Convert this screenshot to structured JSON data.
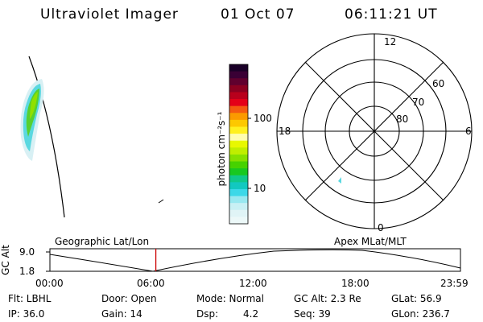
{
  "header": {
    "title": "Ultraviolet Imager",
    "date": "01 Oct 07",
    "time": "06:11:21 UT"
  },
  "colorbar": {
    "unit_label": "photon cm⁻²s⁻¹",
    "ticks": [
      "100",
      "10"
    ],
    "colors": [
      "#1a0028",
      "#3a0035",
      "#60002e",
      "#8c0020",
      "#b8001c",
      "#e40018",
      "#f45a10",
      "#fb9a00",
      "#fdc800",
      "#fff020",
      "#fffdb0",
      "#e8f800",
      "#c0ee00",
      "#86e000",
      "#46d200",
      "#18c820",
      "#10c88a",
      "#12c8c0",
      "#3cd8e8",
      "#98e8f0",
      "#c8f0f4",
      "#e0f4f6",
      "#ecf8f8"
    ]
  },
  "polar": {
    "mlt_labels": {
      "top": "12",
      "left": "18",
      "right": "6",
      "bottom": "0"
    },
    "lat_labels": [
      "60",
      "70",
      "80"
    ]
  },
  "timeline": {
    "ylabel": "GC Alt",
    "y_ticks": [
      "9.0",
      "1.8"
    ],
    "label_left": "Geographic Lat/Lon",
    "label_right": "Apex MLat/MLT",
    "x_ticks": [
      "00:00",
      "06:00",
      "12:00",
      "18:00",
      "23:59"
    ],
    "current_time_fraction": 0.258,
    "marker_color": "#cc0000"
  },
  "info": {
    "filter": "Flt: LBHL",
    "door": "Door: Open",
    "mode": "Mode: Normal",
    "gc_alt": "GC Alt: 2.3 Re",
    "glat": "GLat:  56.9",
    "ip": "IP: 36.0",
    "gain": "Gain: 14",
    "dsp_label": "Dsp:",
    "dsp_value": "4.2",
    "seq": "Seq: 39",
    "glon": "GLon: 236.7"
  }
}
